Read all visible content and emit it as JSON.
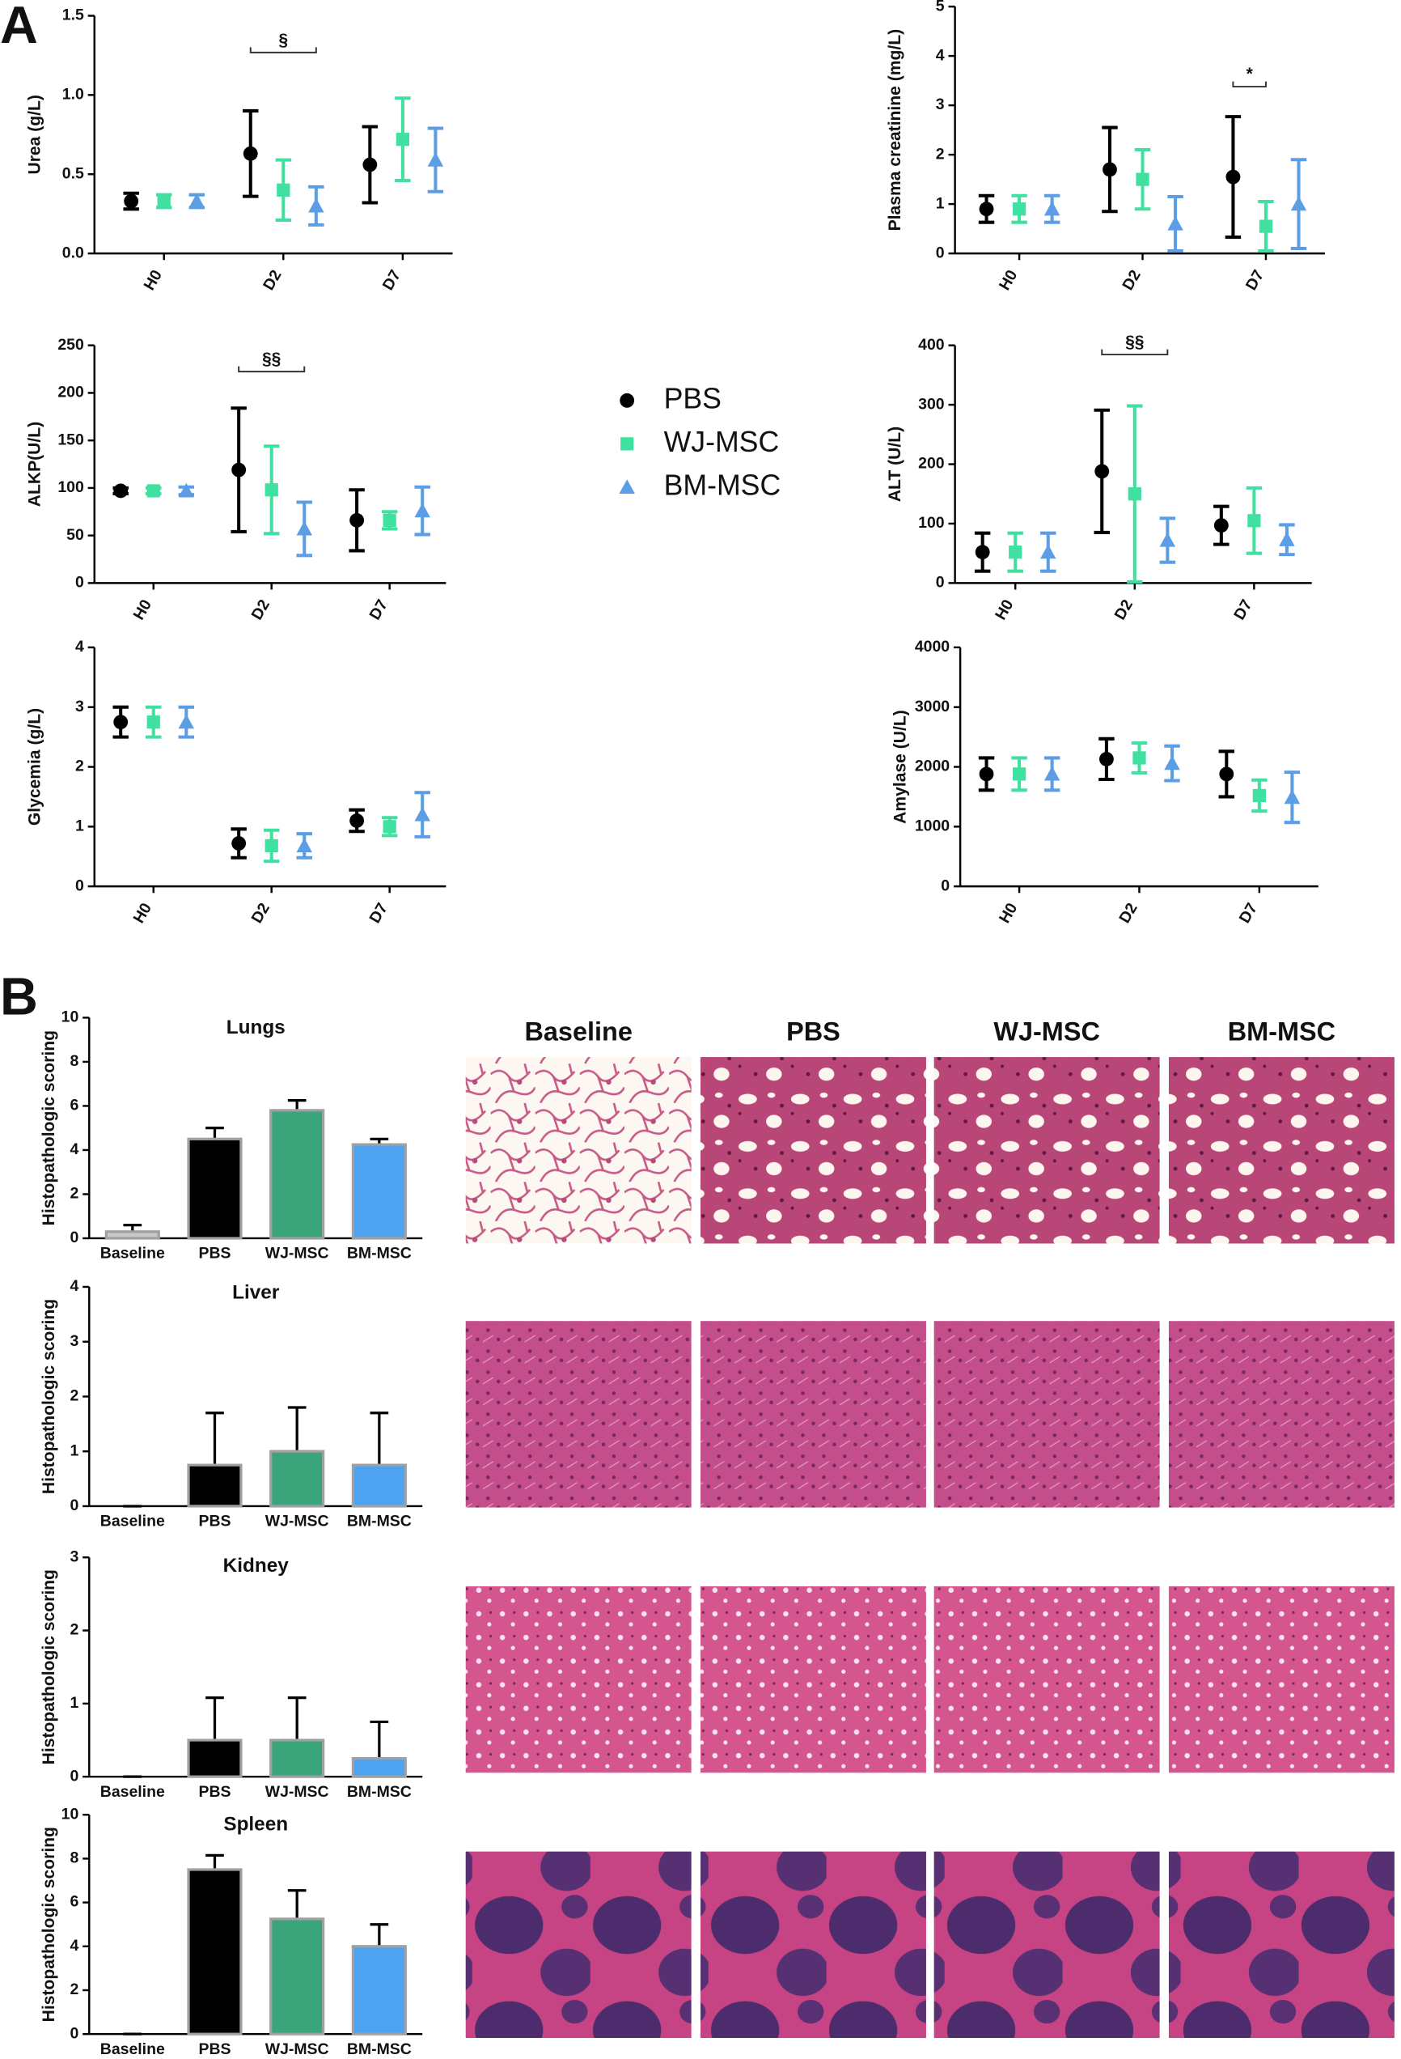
{
  "panels": [
    "A",
    "B"
  ],
  "micrograph_columns": [
    "Baseline",
    "PBS",
    "WJ-MSC",
    "BM-MSC"
  ],
  "chart_data": [
    {
      "type": "errorbar",
      "ylabel": "Urea (g/L)",
      "categories": [
        "H0",
        "D2",
        "D7"
      ],
      "ylim": [
        0,
        1.5
      ],
      "yticks": [
        {
          "value": 0,
          "label": "0.0"
        },
        0.5,
        {
          "value": 1,
          "label": "1.0"
        },
        1.5
      ],
      "series": [
        {
          "name": "PBS",
          "color": "#000000",
          "marker": "circle",
          "values": [
            0.33,
            0.63,
            0.56
          ],
          "errors": [
            0.05,
            0.27,
            0.24
          ]
        },
        {
          "name": "WJ-MSC",
          "color": "#3fe0a0",
          "marker": "square",
          "values": [
            0.33,
            0.4,
            0.72
          ],
          "errors": [
            0.04,
            0.19,
            0.26
          ]
        },
        {
          "name": "BM-MSC",
          "color": "#5b9ee6",
          "marker": "triangle",
          "values": [
            0.33,
            0.3,
            0.59
          ],
          "errors": [
            0.04,
            0.12,
            0.2
          ]
        }
      ],
      "annotation": {
        "text": "§",
        "category": "D2",
        "from": "PBS",
        "to": "BM-MSC"
      }
    },
    {
      "type": "errorbar",
      "ylabel": "Plasma creatinine (mg/L)",
      "categories": [
        "H0",
        "D2",
        "D7"
      ],
      "ylim": [
        0,
        5
      ],
      "yticks": [
        0,
        1,
        2,
        3,
        4,
        5
      ],
      "series": [
        {
          "name": "PBS",
          "color": "#000000",
          "marker": "circle",
          "values": [
            0.9,
            1.7,
            1.55
          ],
          "errors": [
            0.27,
            0.85,
            1.22
          ]
        },
        {
          "name": "WJ-MSC",
          "color": "#3fe0a0",
          "marker": "square",
          "values": [
            0.9,
            1.5,
            0.55
          ],
          "errors": [
            0.27,
            0.6,
            0.5
          ]
        },
        {
          "name": "BM-MSC",
          "color": "#5b9ee6",
          "marker": "triangle",
          "values": [
            0.9,
            0.6,
            1.0
          ],
          "errors": [
            0.27,
            0.55,
            0.9
          ]
        }
      ],
      "annotation": {
        "text": "*",
        "category": "D7",
        "from": "PBS",
        "to": "WJ-MSC"
      }
    },
    {
      "type": "errorbar",
      "ylabel": "ALKP(U/L)",
      "categories": [
        "H0",
        "D2",
        "D7"
      ],
      "ylim": [
        0,
        250
      ],
      "yticks": [
        0,
        50,
        100,
        150,
        200,
        250
      ],
      "series": [
        {
          "name": "PBS",
          "color": "#000000",
          "marker": "circle",
          "values": [
            97,
            119,
            66
          ],
          "errors": [
            3,
            65,
            32
          ]
        },
        {
          "name": "WJ-MSC",
          "color": "#3fe0a0",
          "marker": "square",
          "values": [
            97,
            98,
            66
          ],
          "errors": [
            3,
            46,
            9
          ]
        },
        {
          "name": "BM-MSC",
          "color": "#5b9ee6",
          "marker": "triangle",
          "values": [
            97,
            57,
            76
          ],
          "errors": [
            4,
            28,
            25
          ]
        }
      ],
      "annotation": {
        "text": "§§",
        "category": "D2",
        "from": "PBS",
        "to": "BM-MSC"
      }
    },
    {
      "type": "errorbar",
      "ylabel": "ALT (U/L)",
      "categories": [
        "H0",
        "D2",
        "D7"
      ],
      "ylim": [
        0,
        400
      ],
      "yticks": [
        0,
        100,
        200,
        300,
        400
      ],
      "series": [
        {
          "name": "PBS",
          "color": "#000000",
          "marker": "circle",
          "values": [
            52,
            188,
            97
          ],
          "errors": [
            32,
            103,
            32
          ]
        },
        {
          "name": "WJ-MSC",
          "color": "#3fe0a0",
          "marker": "square",
          "values": [
            52,
            150,
            105
          ],
          "errors": [
            32,
            148,
            55
          ]
        },
        {
          "name": "BM-MSC",
          "color": "#5b9ee6",
          "marker": "triangle",
          "values": [
            52,
            72,
            73
          ],
          "errors": [
            32,
            37,
            25
          ]
        }
      ],
      "annotation": {
        "text": "§§",
        "category": "D2",
        "from": "PBS",
        "to": "BM-MSC"
      }
    },
    {
      "type": "errorbar",
      "ylabel": "Glycemia (g/L)",
      "categories": [
        "H0",
        "D2",
        "D7"
      ],
      "ylim": [
        0,
        4
      ],
      "yticks": [
        0,
        1,
        2,
        3,
        4
      ],
      "series": [
        {
          "name": "PBS",
          "color": "#000000",
          "marker": "circle",
          "values": [
            2.75,
            0.72,
            1.1
          ],
          "errors": [
            0.25,
            0.24,
            0.18
          ]
        },
        {
          "name": "WJ-MSC",
          "color": "#3fe0a0",
          "marker": "square",
          "values": [
            2.75,
            0.68,
            1.0
          ],
          "errors": [
            0.25,
            0.26,
            0.15
          ]
        },
        {
          "name": "BM-MSC",
          "color": "#5b9ee6",
          "marker": "triangle",
          "values": [
            2.75,
            0.68,
            1.2
          ],
          "errors": [
            0.25,
            0.2,
            0.37
          ]
        }
      ]
    },
    {
      "type": "errorbar",
      "ylabel": "Amylase (U/L)",
      "categories": [
        "H0",
        "D2",
        "D7"
      ],
      "ylim": [
        0,
        4000
      ],
      "yticks": [
        0,
        1000,
        2000,
        3000,
        4000
      ],
      "series": [
        {
          "name": "PBS",
          "color": "#000000",
          "marker": "circle",
          "values": [
            1880,
            2130,
            1880
          ],
          "errors": [
            270,
            340,
            380
          ]
        },
        {
          "name": "WJ-MSC",
          "color": "#3fe0a0",
          "marker": "square",
          "values": [
            1880,
            2150,
            1520
          ],
          "errors": [
            270,
            250,
            260
          ]
        },
        {
          "name": "BM-MSC",
          "color": "#5b9ee6",
          "marker": "triangle",
          "values": [
            1880,
            2060,
            1490
          ],
          "errors": [
            270,
            290,
            420
          ]
        }
      ]
    },
    {
      "type": "bar",
      "title": "Lungs",
      "ylabel": "Histopathologic scoring",
      "categories": [
        "Baseline",
        "PBS",
        "WJ-MSC",
        "BM-MSC"
      ],
      "values": [
        0.3,
        4.5,
        5.8,
        4.25
      ],
      "errors": [
        0.3,
        0.5,
        0.45,
        0.25
      ],
      "colors": [
        "#c8c8c8",
        "#000000",
        "#3aa57a",
        "#4da3f0"
      ],
      "ylim": [
        0,
        10
      ],
      "yticks": [
        0,
        2,
        4,
        6,
        8,
        10
      ]
    },
    {
      "type": "bar",
      "title": "Liver",
      "ylabel": "Histopathologic scoring",
      "categories": [
        "Baseline",
        "PBS",
        "WJ-MSC",
        "BM-MSC"
      ],
      "values": [
        0,
        0.75,
        1.0,
        0.75
      ],
      "errors": [
        0,
        0.95,
        0.8,
        0.95
      ],
      "colors": [
        "#c8c8c8",
        "#000000",
        "#3aa57a",
        "#4da3f0"
      ],
      "ylim": [
        0,
        4
      ],
      "yticks": [
        0,
        1,
        2,
        3,
        4
      ]
    },
    {
      "type": "bar",
      "title": "Kidney",
      "ylabel": "Histopathologic scoring",
      "categories": [
        "Baseline",
        "PBS",
        "WJ-MSC",
        "BM-MSC"
      ],
      "values": [
        0,
        0.5,
        0.5,
        0.25
      ],
      "errors": [
        0,
        0.58,
        0.58,
        0.5
      ],
      "colors": [
        "#c8c8c8",
        "#000000",
        "#3aa57a",
        "#4da3f0"
      ],
      "ylim": [
        0,
        3
      ],
      "yticks": [
        0,
        1,
        2,
        3
      ]
    },
    {
      "type": "bar",
      "title": "Spleen",
      "ylabel": "Histopathologic scoring",
      "categories": [
        "Baseline",
        "PBS",
        "WJ-MSC",
        "BM-MSC"
      ],
      "values": [
        0,
        7.5,
        5.25,
        4.0
      ],
      "errors": [
        0,
        0.65,
        1.3,
        1.0
      ],
      "colors": [
        "#c8c8c8",
        "#000000",
        "#3aa57a",
        "#4da3f0"
      ],
      "ylim": [
        0,
        10
      ],
      "yticks": [
        0,
        2,
        4,
        6,
        8,
        10
      ]
    }
  ]
}
